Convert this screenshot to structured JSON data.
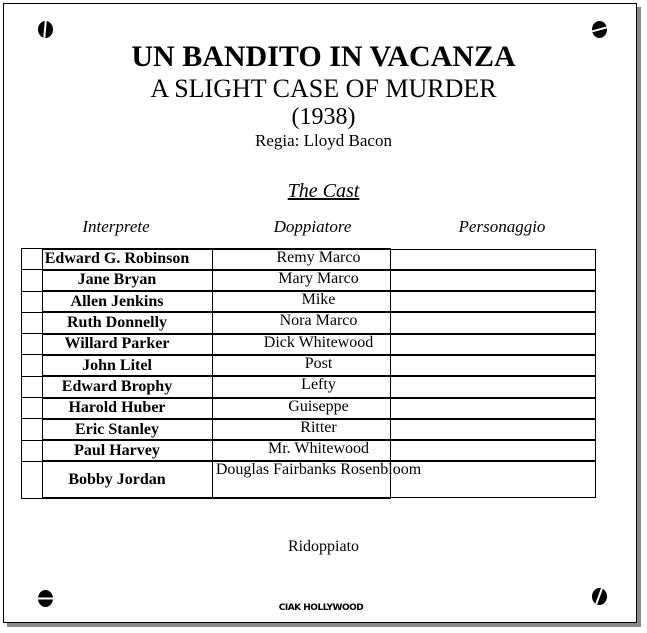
{
  "title_it": "UN BANDITO IN VACANZA",
  "title_en": "A SLIGHT CASE OF MURDER",
  "year": "(1938)",
  "director": "Regia: Lloyd Bacon",
  "cast_heading": "The Cast",
  "columns": [
    "Interprete",
    "Doppiatore",
    "Personaggio"
  ],
  "rows": [
    {
      "actor": "Edward G. Robinson",
      "dubber": "",
      "character": "Remy Marco"
    },
    {
      "actor": "Jane Bryan",
      "dubber": "",
      "character": "Mary Marco"
    },
    {
      "actor": "Allen Jenkins",
      "dubber": "",
      "character": "Mike"
    },
    {
      "actor": "Ruth Donnelly",
      "dubber": "",
      "character": "Nora Marco"
    },
    {
      "actor": "Willard Parker",
      "dubber": "",
      "character": "Dick Whitewood"
    },
    {
      "actor": "John Litel",
      "dubber": "",
      "character": "Post"
    },
    {
      "actor": "Edward Brophy",
      "dubber": "",
      "character": "Lefty"
    },
    {
      "actor": "Harold Huber",
      "dubber": "",
      "character": "Guiseppe"
    },
    {
      "actor": "Eric Stanley",
      "dubber": "",
      "character": "Ritter"
    },
    {
      "actor": "Paul Harvey",
      "dubber": "",
      "character": "Mr. Whitewood"
    },
    {
      "actor": "Bobby Jordan",
      "dubber": "",
      "character": "Douglas Fairbanks Rosenbloom"
    }
  ],
  "note": "Ridoppiato",
  "logo": "CIAK HOLLYWOOD"
}
